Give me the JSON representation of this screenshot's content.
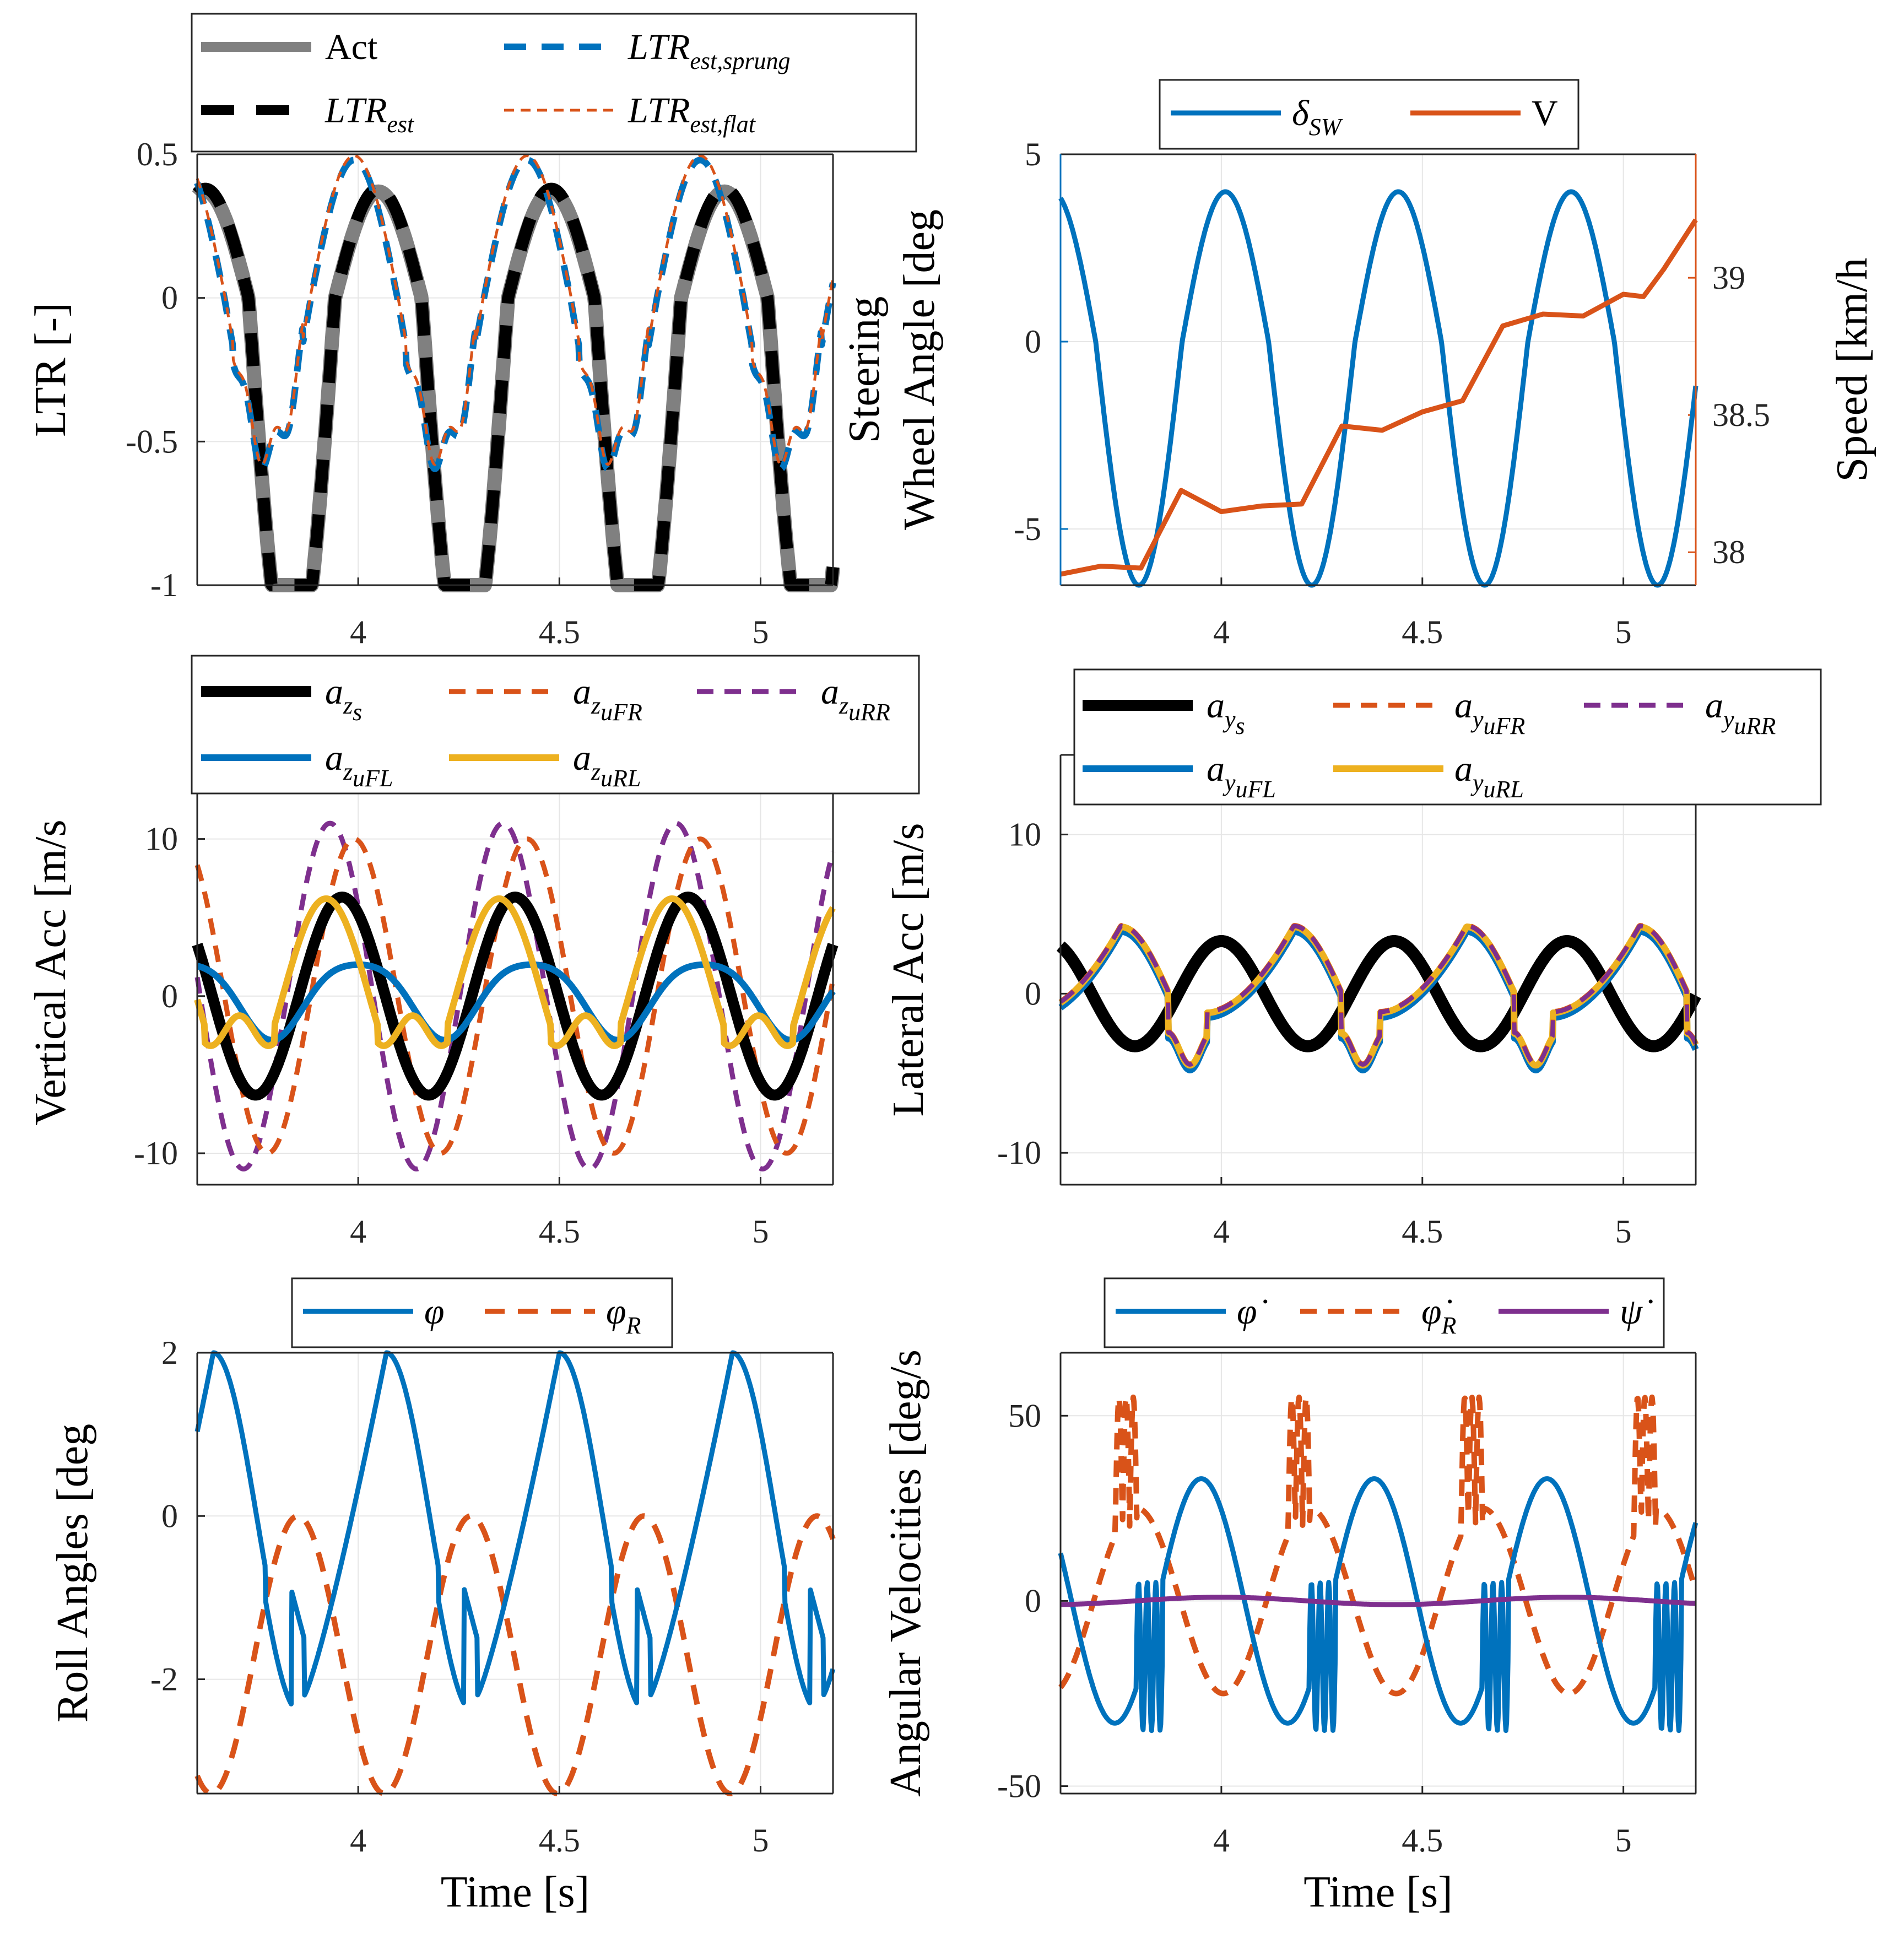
{
  "colors": {
    "blue": "#0072BD",
    "orange": "#D95319",
    "purple": "#7E2F8E",
    "yellow": "#EDB120",
    "black": "#000000",
    "gray": "#808080",
    "axis": "#262626"
  },
  "chart_data": [
    {
      "id": "ltr",
      "type": "line",
      "ylabel": "LTR [-]",
      "xlabel": "",
      "xlim": [
        3.6,
        5.18
      ],
      "ylim": [
        -1,
        0.5
      ],
      "xticks": [
        "4",
        "4.5",
        "5"
      ],
      "yticks": [
        "0.5",
        "0",
        "-0.5",
        "-1"
      ],
      "legend": {
        "placement": "top-outside",
        "entries": [
          {
            "name": "Act",
            "style": "solid-thick",
            "color": "gray"
          },
          {
            "name": "LTR",
            "sub": "est,sprung",
            "style": "dash",
            "color": "blue"
          },
          {
            "name": "LTR",
            "sub": "est",
            "style": "dash-thick",
            "color": "black"
          },
          {
            "name": "LTR",
            "sub": "est,flat",
            "style": "dash-thin",
            "color": "orange"
          }
        ]
      },
      "series": [
        {
          "name": "Act",
          "period": 0.43,
          "peak_time": 4.05,
          "max": 0.37,
          "min": -1.0
        },
        {
          "name": "LTR_est",
          "period": 0.43,
          "peak_time": 4.05,
          "max": 0.38,
          "min": -1.0
        },
        {
          "name": "LTR_est,sprung",
          "period": 0.43,
          "peak_time": 4.0,
          "max": 0.48,
          "min": -0.55
        },
        {
          "name": "LTR_est,flat",
          "period": 0.43,
          "peak_time": 4.0,
          "max": 0.49,
          "min": -0.55
        }
      ]
    },
    {
      "id": "steer",
      "type": "line",
      "ylabel_lines": [
        "Steering",
        "Wheel Angle [deg"
      ],
      "y2label": "Speed [km/h",
      "xlim": [
        3.6,
        5.18
      ],
      "ylim": [
        -6.5,
        5
      ],
      "y2lim": [
        37.88,
        39.45
      ],
      "xticks": [
        "4",
        "4.5",
        "5"
      ],
      "yticks": [
        "5",
        "0",
        "-5"
      ],
      "y2ticks": [
        "39",
        "38.5",
        "38"
      ],
      "legend": {
        "placement": "top",
        "entries": [
          {
            "name": "δ",
            "sub": "SW",
            "color": "blue"
          },
          {
            "name": "V",
            "color": "orange"
          }
        ]
      },
      "series": [
        {
          "name": "δ_SW",
          "period": 0.43,
          "peak_time": 4.01,
          "max": 4.0,
          "min": -6.5
        },
        {
          "name": "V",
          "values": [
            [
              3.6,
              37.94
            ],
            [
              3.7,
              37.93
            ],
            [
              3.8,
              37.96
            ],
            [
              3.9,
              38.21
            ],
            [
              4.0,
              38.16
            ],
            [
              4.1,
              38.16
            ],
            [
              4.2,
              38.18
            ],
            [
              4.3,
              38.46
            ],
            [
              4.4,
              38.44
            ],
            [
              4.5,
              38.52
            ],
            [
              4.6,
              38.54
            ],
            [
              4.7,
              38.84
            ],
            [
              4.8,
              38.85
            ],
            [
              4.9,
              38.88
            ],
            [
              5.0,
              38.92
            ],
            [
              5.05,
              38.93
            ],
            [
              5.1,
              39.05
            ],
            [
              5.18,
              39.2
            ]
          ]
        }
      ]
    },
    {
      "id": "vacc",
      "type": "line",
      "ylabel": "Vertical Acc [m/s",
      "xlim": [
        3.6,
        5.18
      ],
      "ylim": [
        -12,
        15
      ],
      "xticks": [
        "4",
        "4.5",
        "5"
      ],
      "yticks": [
        "10",
        "0",
        "-10"
      ],
      "legend": {
        "placement": "top",
        "entries": [
          {
            "name": "a",
            "sub": "z",
            "sub2": "s",
            "color": "black"
          },
          {
            "name": "a",
            "sub": "z",
            "sub2": "uFR",
            "color": "orange",
            "dash": true
          },
          {
            "name": "a",
            "sub": "z",
            "sub2": "uRR",
            "color": "purple",
            "dash": true
          },
          {
            "name": "a",
            "sub": "z",
            "sub2": "uFL",
            "color": "blue"
          },
          {
            "name": "a",
            "sub": "z",
            "sub2": "uRL",
            "color": "yellow"
          }
        ]
      },
      "series": [
        {
          "name": "a_zs",
          "period": 0.43,
          "peak_time": 3.96,
          "amplitude": 6.3
        },
        {
          "name": "a_zuFR",
          "period": 0.43,
          "peak_time": 3.99,
          "amplitude": 10.0
        },
        {
          "name": "a_zuRR",
          "period": 0.43,
          "peak_time": 3.93,
          "amplitude": 11.0
        },
        {
          "name": "a_zuFL",
          "period": 0.43,
          "peak_time": 4.0,
          "amplitude": 2.5
        },
        {
          "name": "a_zuRL",
          "period": 0.43,
          "peak_time": 3.92,
          "amplitude": 6.0
        }
      ]
    },
    {
      "id": "lacc",
      "type": "line",
      "ylabel": "Lateral Acc [m/s",
      "xlim": [
        3.6,
        5.18
      ],
      "ylim": [
        -12,
        15
      ],
      "xticks": [
        "4",
        "4.5",
        "5"
      ],
      "yticks": [
        "10",
        "0",
        "-10"
      ],
      "legend": {
        "placement": "top-right",
        "entries": [
          {
            "name": "a",
            "sub": "y",
            "sub2": "s",
            "color": "black"
          },
          {
            "name": "a",
            "sub": "y",
            "sub2": "uFR",
            "color": "orange",
            "dash": true
          },
          {
            "name": "a",
            "sub": "y",
            "sub2": "uRR",
            "color": "purple",
            "dash": true
          },
          {
            "name": "a",
            "sub": "y",
            "sub2": "uFL",
            "color": "blue"
          },
          {
            "name": "a",
            "sub": "y",
            "sub2": "uRL",
            "color": "yellow"
          }
        ]
      },
      "series": [
        {
          "name": "a_ys",
          "period": 0.43,
          "peak_time": 4.0,
          "amplitude": 3.3
        },
        {
          "name": "a_yu",
          "period": 0.43,
          "peak_time": 3.75,
          "max": 4.3,
          "min": -4.0
        }
      ]
    },
    {
      "id": "roll",
      "type": "line",
      "ylabel": "Roll Angles [deg",
      "xlabel": "Time [s]",
      "xlim": [
        3.6,
        5.18
      ],
      "ylim": [
        -3.4,
        2
      ],
      "xticks": [
        "4",
        "4.5",
        "5"
      ],
      "yticks": [
        "2",
        "0",
        "-2"
      ],
      "legend": {
        "placement": "top",
        "entries": [
          {
            "name": "φ",
            "color": "blue"
          },
          {
            "name": "φ",
            "sub": "R",
            "color": "orange",
            "dash": true
          }
        ]
      },
      "series": [
        {
          "name": "φ",
          "period": 0.43,
          "peak_time": 3.64,
          "max": 2.0,
          "min": -2.2
        },
        {
          "name": "φ_R",
          "period": 0.43,
          "peak_time": 3.85,
          "max": 0.0,
          "min": -3.4
        }
      ]
    },
    {
      "id": "angvel",
      "type": "line",
      "ylabel": "Angular Velocities [deg/s",
      "xlabel": "Time [s]",
      "xlim": [
        3.6,
        5.18
      ],
      "ylim": [
        -52,
        67
      ],
      "xticks": [
        "4",
        "4.5",
        "5"
      ],
      "yticks": [
        "50",
        "0",
        "-50"
      ],
      "legend": {
        "placement": "top",
        "entries": [
          {
            "name": "φ̇",
            "color": "blue"
          },
          {
            "name": "φ̇",
            "sub": "R",
            "color": "orange",
            "dash": true
          },
          {
            "name": "ψ̇",
            "color": "purple"
          }
        ]
      },
      "series": [
        {
          "name": "φ_dot",
          "period": 0.43,
          "peak_time": 3.95,
          "amplitude": 33
        },
        {
          "name": "φ_R_dot",
          "period": 0.43,
          "peak_time": 3.8,
          "max": 58,
          "min": -25
        },
        {
          "name": "ψ_dot",
          "period": 0.43,
          "amplitude": 1
        }
      ]
    }
  ]
}
